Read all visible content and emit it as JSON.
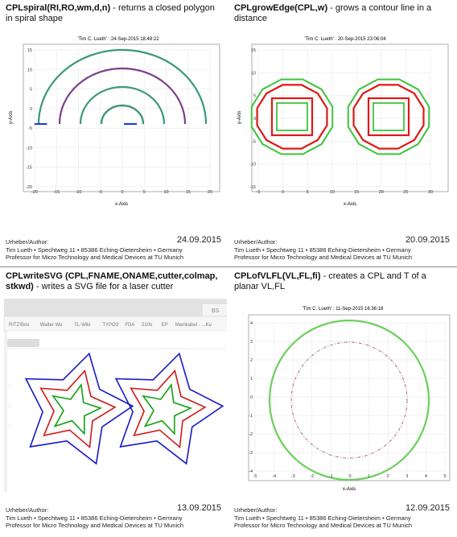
{
  "cards": [
    {
      "title_bold": "CPLspiral(RI,RO,wm,d,n)",
      "title_rest": " - returns a closed polygon in spiral shape",
      "plot_header": "'Tim C. Lueth' : 24-Sep-2015 18:49:22",
      "xlabel": "x-Axis",
      "ylabel": "y-Axis",
      "xticks": [
        "-20",
        "-15",
        "-10",
        "-5",
        "0",
        "5",
        "10",
        "15",
        "20"
      ],
      "yticks": [
        "15",
        "10",
        "5",
        "0",
        "-5",
        "-10",
        "-15",
        "-20"
      ],
      "author_label": "Urheber/Author:",
      "date": "24.09.2015",
      "address": "Tim Lueth • Spechtweg 11 • 85386 Eching-Dietersheim • Germany",
      "affiliation": "Professor for Micro Technology and Medical Devices at TU Munich"
    },
    {
      "title_bold": "CPLgrowEdge(CPL,w)",
      "title_rest": " - grows a contour line in a distance",
      "plot_header": "'Tim C. Lueth' : 20-Sep-2015 23:06:04",
      "xlabel": "x-Axis",
      "ylabel": "y-Axis",
      "xticks": [
        "-5",
        "0",
        "5",
        "10",
        "15",
        "20",
        "25",
        "30"
      ],
      "yticks": [
        "15",
        "10",
        "5",
        "0",
        "-5",
        "-10",
        "-15"
      ],
      "author_label": "Urheber/Author:",
      "date": "20.09.2015",
      "address": "Tim Lueth • Spechtweg 11 • 85386 Eching-Dietersheim • Germany",
      "affiliation": "Professor for Micro Technology and Medical Devices at TU Munich"
    },
    {
      "title_bold": "CPLwriteSVG (CPL,FNAME,ONAME,cutter,colmap, stkwd)",
      "title_rest": " - writes a SVG file for a laser cutter",
      "browser_tab": "BS",
      "bookmarks": [
        "RITZ!Box",
        "Walter Wu",
        "TL-Wiki",
        "TYPO3",
        "FDA",
        "510k",
        "EP",
        "Meinkabel - ...Ku"
      ],
      "author_label": "Urheber/Author:",
      "date": "13.09.2015",
      "address": "Tim Lueth • Spechtweg 11 • 85386 Eching-Dietersheim • Germany",
      "affiliation": "Professor for Micro Technology and Medical Devices at TU Munich"
    },
    {
      "title_bold": "CPLofVLFL(VL,FL,fi)",
      "title_rest": " - creates a CPL and T of a planar VL,FL",
      "plot_header": "'Tim C. Lueth' : 11-Sep-2015 16:36:18",
      "xlabel": "x-Axis",
      "xticks": [
        "-5",
        "-4",
        "-3",
        "-2",
        "-1",
        "0",
        "1",
        "2",
        "3",
        "4",
        "5"
      ],
      "yticks": [
        "4",
        "3",
        "2",
        "1",
        "0",
        "-1",
        "-2",
        "-3",
        "-4"
      ],
      "author_label": "Urheber/Author:",
      "date": "12.09.2015",
      "address": "Tim Lueth • Spechtweg 11 • 85386 Eching-Dietersheim • Germany",
      "affiliation": "Professor for Micro Technology and Medical Devices at TU Munich"
    }
  ],
  "colors": {
    "spiral_a": "#7b3f8c",
    "spiral_b": "#3a9a72",
    "spiral_end": "#1f3fd0",
    "grow_green": "#3ec43e",
    "grow_red": "#e01818",
    "svg_blue": "#1818c8",
    "svg_red": "#d01818",
    "svg_green": "#12a012",
    "circle_green": "#6ad05a",
    "circle_purple": "#b06a9a"
  }
}
